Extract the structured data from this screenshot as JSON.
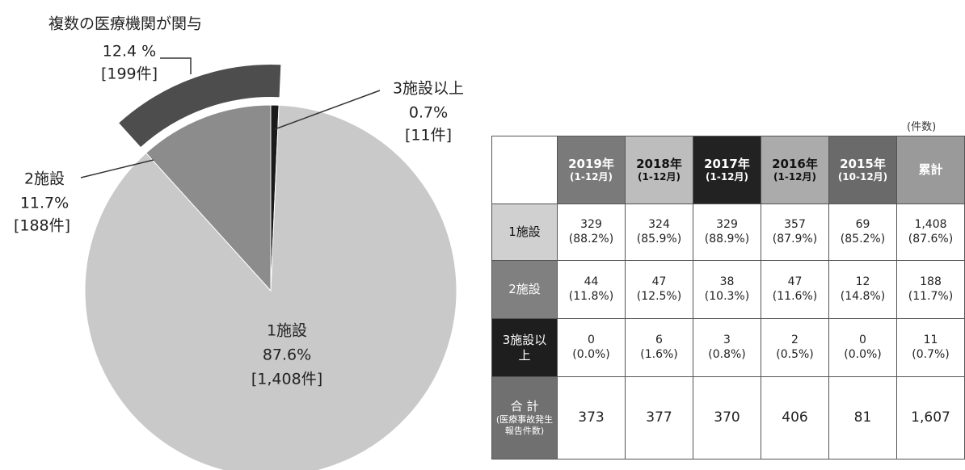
{
  "chart_data": {
    "type": "pie",
    "title": "複数の医療機関が関与",
    "categories": [
      "1施設",
      "2施設",
      "3施設以上"
    ],
    "values": [
      87.6,
      11.7,
      0.7
    ],
    "value_labels": [
      "87.6%",
      "11.7%",
      "0.7%"
    ],
    "count_labels": [
      "[1,408件]",
      "[188件]",
      "[11件]"
    ],
    "colors": [
      "#c9c9c9",
      "#8c8c8c",
      "#1a1a1a"
    ],
    "group": {
      "value": 12.4,
      "value_label": "12.4 %",
      "count_label": "[199件]",
      "color": "#4d4d4d"
    }
  },
  "table": {
    "unit": "(件数)",
    "columns": [
      {
        "label": "2019年",
        "sub": "(1-12月)",
        "color": "#7a7a7a",
        "text": "#fff"
      },
      {
        "label": "2018年",
        "sub": "(1-12月)",
        "color": "#bdbdbd",
        "text": "#111"
      },
      {
        "label": "2017年",
        "sub": "(1-12月)",
        "color": "#222222",
        "text": "#fff"
      },
      {
        "label": "2016年",
        "sub": "(1-12月)",
        "color": "#ababab",
        "text": "#111"
      },
      {
        "label": "2015年",
        "sub": "(10-12月)",
        "color": "#6a6a6a",
        "text": "#fff"
      },
      {
        "label": "累計",
        "color": "#9a9a9a",
        "text": "#fff"
      }
    ],
    "rows": [
      {
        "label": "1施設",
        "color": "#d0d0d0",
        "text": "#111",
        "cells": [
          [
            "329",
            "(88.2%)"
          ],
          [
            "324",
            "(85.9%)"
          ],
          [
            "329",
            "(88.9%)"
          ],
          [
            "357",
            "(87.9%)"
          ],
          [
            "69",
            "(85.2%)"
          ],
          [
            "1,408",
            "(87.6%)"
          ]
        ]
      },
      {
        "label": "2施設",
        "color": "#808080",
        "text": "#fff",
        "cells": [
          [
            "44",
            "(11.8%)"
          ],
          [
            "47",
            "(12.5%)"
          ],
          [
            "38",
            "(10.3%)"
          ],
          [
            "47",
            "(11.6%)"
          ],
          [
            "12",
            "(14.8%)"
          ],
          [
            "188",
            "(11.7%)"
          ]
        ]
      },
      {
        "label": "3施設以上",
        "color": "#1e1e1e",
        "text": "#fff",
        "cells": [
          [
            "0",
            "(0.0%)"
          ],
          [
            "6",
            "(1.6%)"
          ],
          [
            "3",
            "(0.8%)"
          ],
          [
            "2",
            "(0.5%)"
          ],
          [
            "0",
            "(0.0%)"
          ],
          [
            "11",
            "(0.7%)"
          ]
        ]
      },
      {
        "label": "合 計",
        "sub": "(医療事故発生報告件数)",
        "color": "#707070",
        "text": "#fff",
        "cells": [
          [
            "373"
          ],
          [
            "377"
          ],
          [
            "370"
          ],
          [
            "406"
          ],
          [
            "81"
          ],
          [
            "1,607"
          ]
        ]
      }
    ]
  }
}
